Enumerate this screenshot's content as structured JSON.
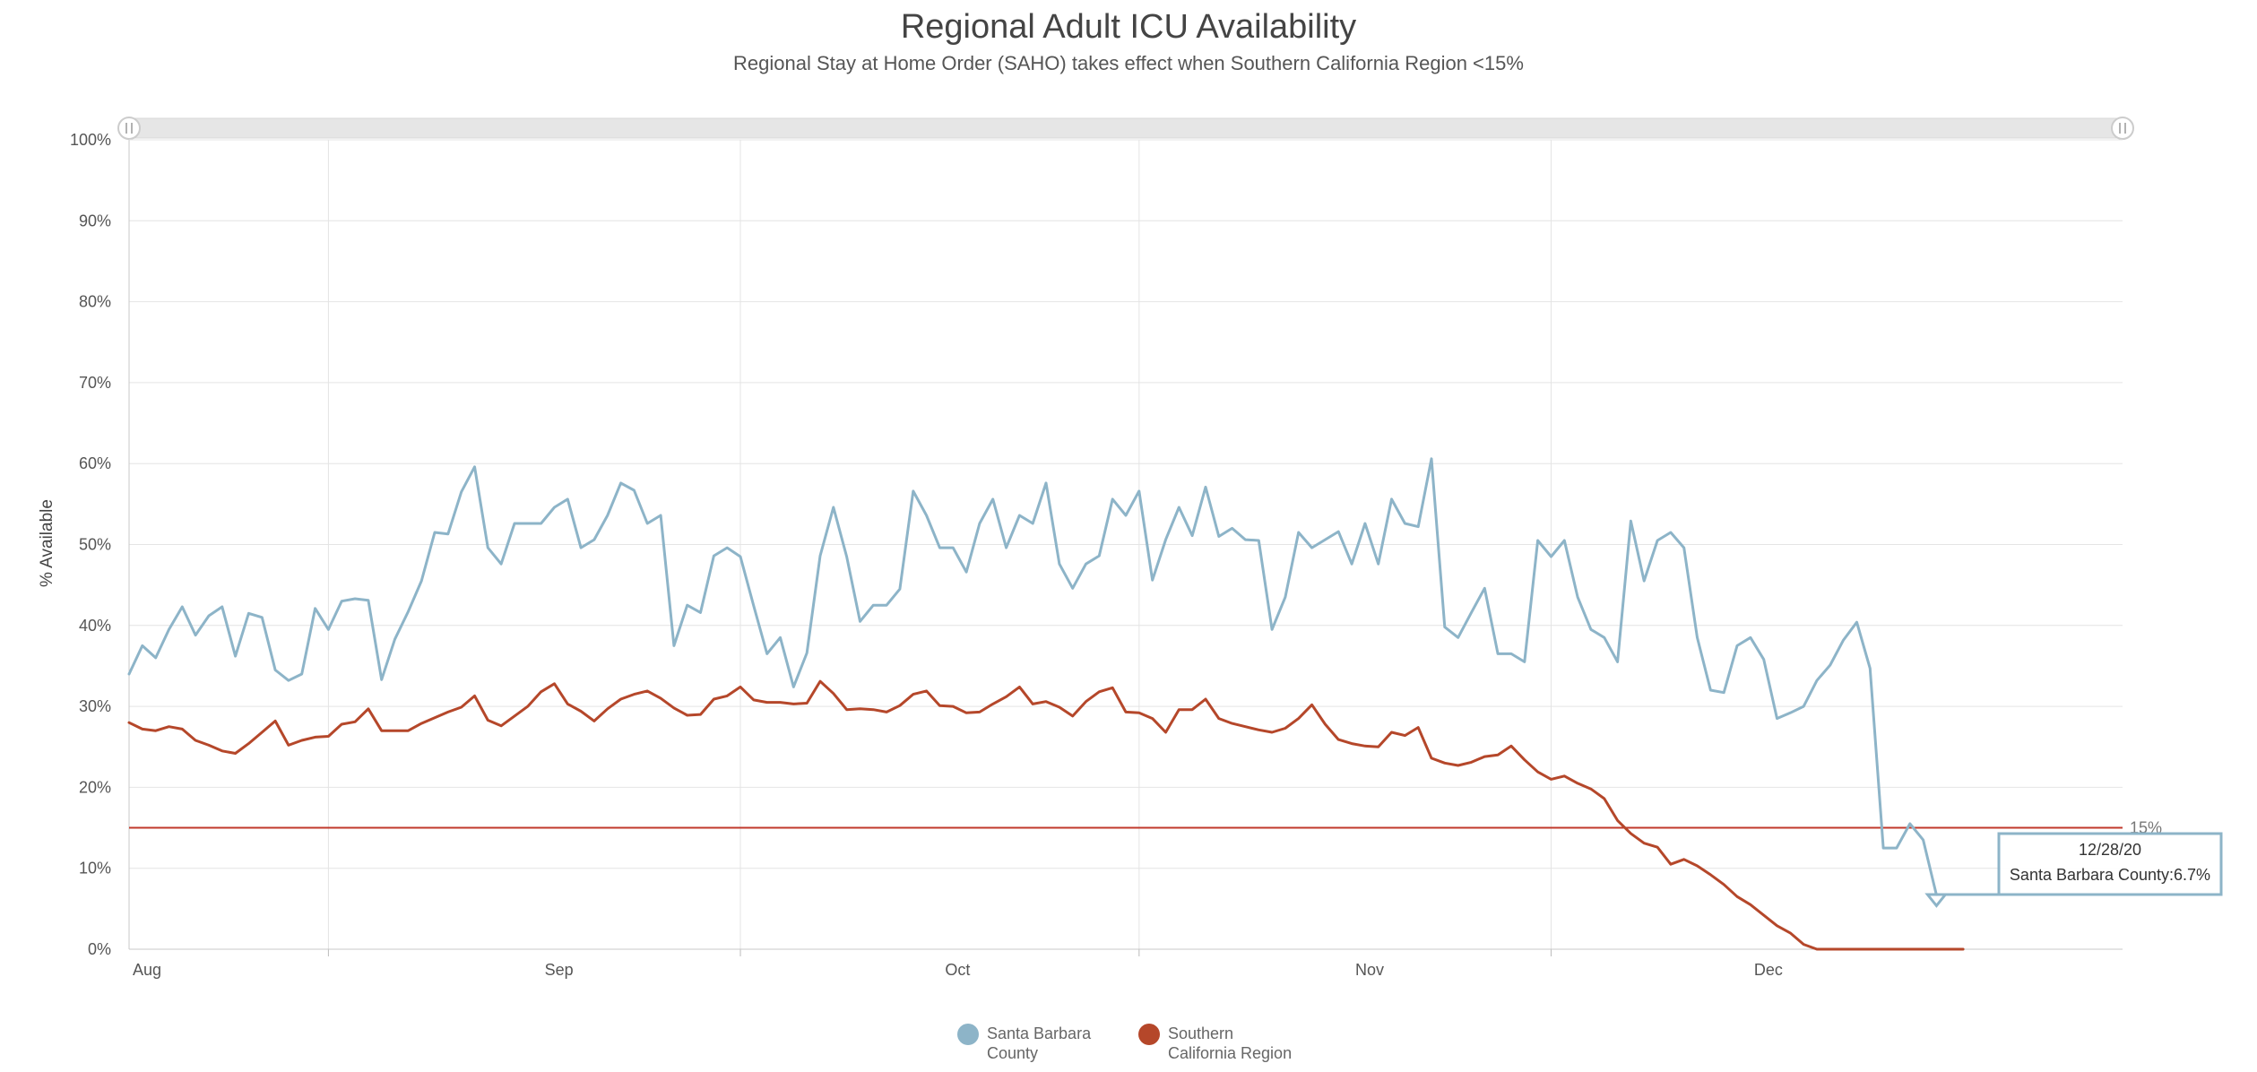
{
  "chart_data": {
    "type": "line",
    "title": "Regional Adult ICU Availability",
    "subtitle": "Regional Stay at Home Order (SAHO) takes effect when Southern California Region <15%",
    "ylabel": "% Available",
    "xlabel": "",
    "ylim": [
      0,
      100
    ],
    "y_ticks": [
      "0%",
      "10%",
      "20%",
      "30%",
      "40%",
      "50%",
      "60%",
      "70%",
      "80%",
      "90%",
      "100%"
    ],
    "x_start": "2020-08-01",
    "x_end": "2020-12-29",
    "x_ticks": [
      {
        "label": "Aug",
        "date": "2020-08-01"
      },
      {
        "label": "Sep",
        "date": "2020-09-01"
      },
      {
        "label": "Oct",
        "date": "2020-10-01"
      },
      {
        "label": "Nov",
        "date": "2020-11-01"
      },
      {
        "label": "Dec",
        "date": "2020-12-01"
      }
    ],
    "grid": true,
    "legend_position": "bottom",
    "reference_line": {
      "value": 15,
      "label": "15%",
      "color": "#c0392b"
    },
    "series": [
      {
        "name": "Santa Barbara County",
        "color": "#8db4c8",
        "values": [
          34,
          37.5,
          36,
          39.5,
          42.3,
          38.8,
          41.2,
          42.3,
          36.2,
          41.5,
          41,
          34.5,
          33.2,
          34,
          42.1,
          39.5,
          43,
          43.3,
          43.1,
          33.3,
          38.3,
          41.7,
          45.5,
          51.5,
          51.3,
          56.5,
          59.6,
          49.6,
          47.6,
          52.6,
          52.6,
          52.6,
          54.6,
          55.6,
          49.6,
          50.6,
          53.6,
          57.6,
          56.7,
          52.6,
          53.6,
          37.5,
          42.5,
          41.6,
          48.6,
          49.6,
          48.5,
          42.4,
          36.5,
          38.5,
          32.4,
          36.6,
          48.6,
          54.6,
          48.5,
          40.5,
          42.5,
          42.5,
          44.5,
          56.6,
          53.6,
          49.6,
          49.6,
          46.6,
          52.6,
          55.6,
          49.6,
          53.6,
          52.6,
          57.6,
          47.6,
          44.6,
          47.6,
          48.6,
          55.6,
          53.6,
          56.6,
          45.6,
          50.6,
          54.6,
          51.1,
          57.1,
          51,
          52,
          50.6,
          50.5,
          39.5,
          43.5,
          51.5,
          49.6,
          50.6,
          51.6,
          47.6,
          52.6,
          47.6,
          55.6,
          52.6,
          52.2,
          60.6,
          39.8,
          38.5,
          41.6,
          44.6,
          36.5,
          36.5,
          35.5,
          50.5,
          48.5,
          50.5,
          43.5,
          39.5,
          38.5,
          35.5,
          52.9,
          45.5,
          50.5,
          51.5,
          49.6,
          38.5,
          32,
          31.7,
          37.5,
          38.5,
          35.8,
          28.5,
          29.2,
          30,
          33.2,
          35.1,
          38.2,
          40.4,
          34.7,
          12.5,
          12.5,
          15.5,
          13.5,
          6.7
        ]
      },
      {
        "name": "Southern California Region",
        "color": "#b5472a",
        "values": [
          28,
          27.2,
          27,
          27.5,
          27.2,
          25.8,
          25.2,
          24.5,
          24.2,
          25.4,
          26.8,
          28.2,
          25.2,
          25.8,
          26.2,
          26.3,
          27.8,
          28.1,
          29.7,
          27,
          27,
          27,
          27.9,
          28.6,
          29.3,
          29.9,
          31.3,
          28.3,
          27.6,
          28.8,
          30,
          31.8,
          32.8,
          30.3,
          29.4,
          28.2,
          29.7,
          30.9,
          31.5,
          31.9,
          31,
          29.8,
          28.9,
          29,
          30.9,
          31.3,
          32.4,
          30.8,
          30.5,
          30.5,
          30.3,
          30.4,
          33.1,
          31.6,
          29.6,
          29.7,
          29.6,
          29.3,
          30.1,
          31.5,
          31.9,
          30.1,
          30,
          29.2,
          29.3,
          30.3,
          31.2,
          32.4,
          30.3,
          30.6,
          29.9,
          28.8,
          30.6,
          31.8,
          32.3,
          29.3,
          29.2,
          28.5,
          26.8,
          29.6,
          29.6,
          30.9,
          28.5,
          27.9,
          27.5,
          27.1,
          26.8,
          27.3,
          28.5,
          30.2,
          27.8,
          25.9,
          25.4,
          25.1,
          25,
          26.8,
          26.4,
          27.4,
          23.6,
          23,
          22.7,
          23.1,
          23.8,
          24,
          25.1,
          23.4,
          21.9,
          21,
          21.4,
          20.5,
          19.8,
          18.6,
          15.9,
          14.3,
          13.1,
          12.6,
          10.5,
          11.1,
          10.3,
          9.2,
          8,
          6.5,
          5.5,
          4.2,
          2.9,
          2,
          0.6,
          0,
          0,
          0,
          0,
          0,
          0,
          0,
          0,
          0,
          0,
          0,
          0
        ]
      }
    ],
    "tooltip": {
      "date": "12/28/20",
      "text": "Santa Barbara County:6.7%"
    }
  },
  "legend": [
    {
      "line1": "Santa Barbara",
      "line2": "County",
      "color": "#8db4c8"
    },
    {
      "line1": "Southern",
      "line2": "California Region",
      "color": "#b5472a"
    }
  ]
}
